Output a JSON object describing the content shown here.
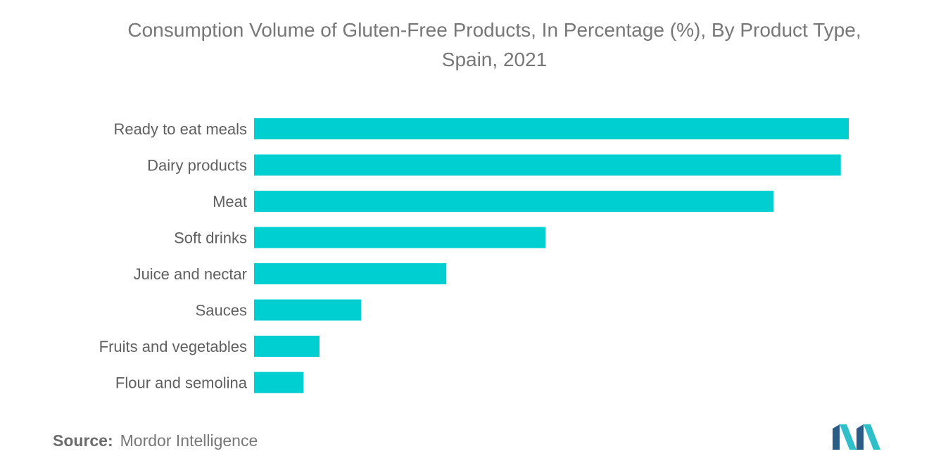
{
  "title_line1": "Consumption Volume of Gluten-Free Products, In Percentage (%), By Product Type,",
  "title_line2": "Spain, 2021",
  "source_label": "Source:",
  "source_name": "Mordor Intelligence",
  "colors": {
    "bar": "#00cfd1",
    "logo_dark": "#2a5c86",
    "logo_accent": "#2fbfc8"
  },
  "chart_data": {
    "type": "bar",
    "orientation": "horizontal",
    "categories": [
      "Ready to eat meals",
      "Dairy products",
      "Meat",
      "Soft drinks",
      "Juice and nectar",
      "Sauces",
      "Fruits and vegetables",
      "Flour and semolina"
    ],
    "values": [
      30.0,
      29.6,
      26.2,
      14.7,
      9.7,
      5.4,
      3.3,
      2.5
    ],
    "xlim": [
      0,
      30
    ],
    "grid": false,
    "legend": "none"
  }
}
